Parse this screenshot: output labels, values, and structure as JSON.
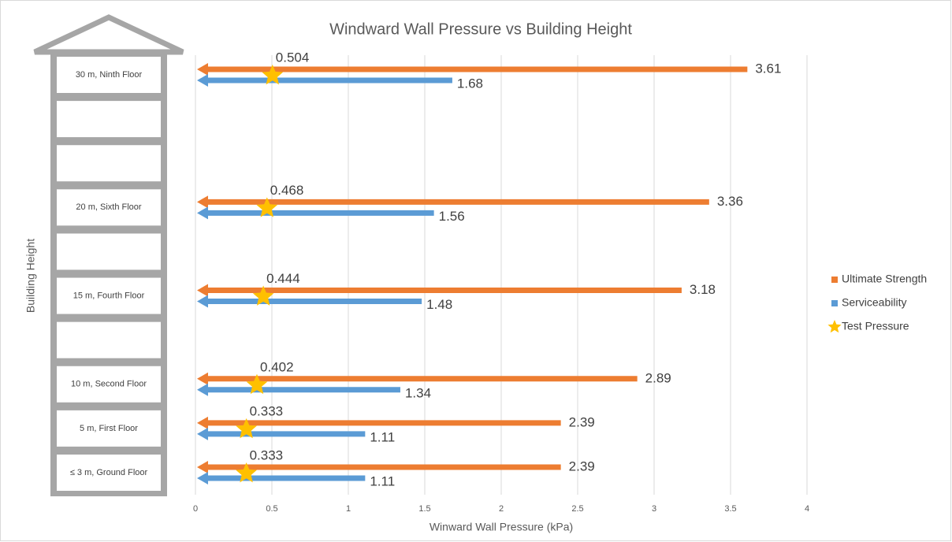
{
  "chart_data": {
    "type": "bar",
    "orientation": "horizontal",
    "title": "Windward Wall Pressure vs Building Height",
    "x_label": "Winward Wall Pressure (kPa)",
    "y_label": "Building Height",
    "categories": [
      "30 m, Ninth Floor",
      null,
      null,
      "20 m, Sixth Floor",
      null,
      "15 m, Fourth Floor",
      null,
      "10 m, Second Floor",
      "5 m, First Floor",
      "≤ 3 m, Ground Floor"
    ],
    "series": [
      {
        "name": "Ultimate Strength",
        "color": "#ed7d31",
        "values": [
          3.61,
          null,
          null,
          3.36,
          null,
          3.18,
          null,
          2.89,
          2.39,
          2.39
        ]
      },
      {
        "name": "Serviceability",
        "color": "#5b9bd5",
        "values": [
          1.68,
          null,
          null,
          1.56,
          null,
          1.48,
          null,
          1.34,
          1.11,
          1.11
        ]
      },
      {
        "name": "Test Pressure",
        "color": "#ffc000",
        "marker": "star",
        "values": [
          0.504,
          null,
          null,
          0.468,
          null,
          0.444,
          null,
          0.402,
          0.333,
          0.333
        ]
      }
    ],
    "xlim": [
      0,
      4
    ],
    "xticks": [
      0,
      0.5,
      1,
      1.5,
      2,
      2.5,
      3,
      3.5,
      4
    ],
    "grid": true,
    "legend": "right"
  }
}
